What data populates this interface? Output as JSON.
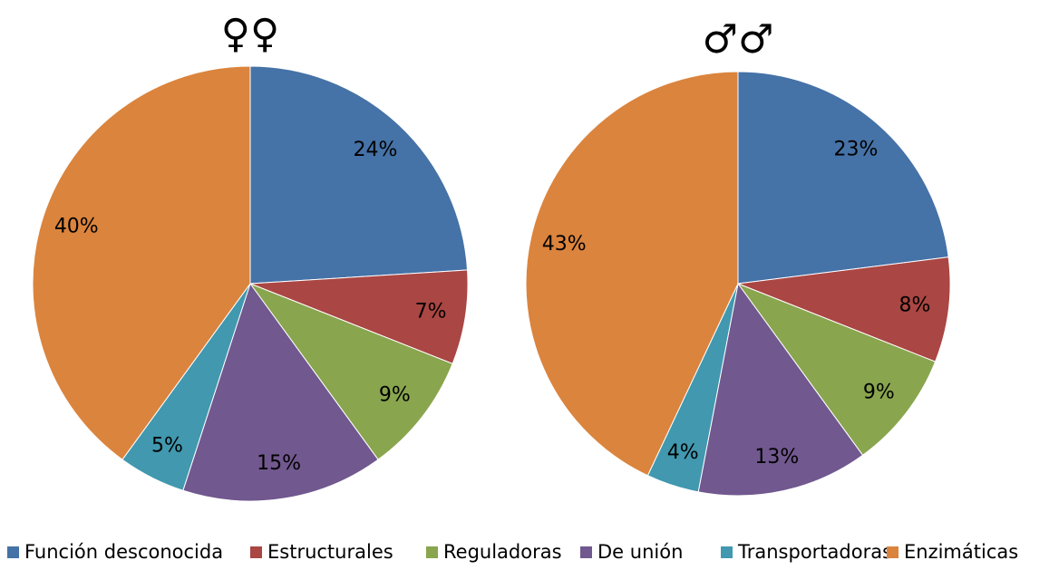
{
  "chart_data": [
    {
      "type": "pie",
      "title": "♀♀",
      "values": [
        24,
        7,
        9,
        15,
        5,
        40
      ],
      "value_labels": [
        "24%",
        "7%",
        "9%",
        "15%",
        "5%",
        "40%"
      ]
    },
    {
      "type": "pie",
      "title": "♂♂",
      "values": [
        23,
        8,
        9,
        13,
        4,
        43
      ],
      "value_labels": [
        "23%",
        "8%",
        "9%",
        "13%",
        "4%",
        "43%"
      ]
    }
  ],
  "legend": {
    "labels": [
      "Función desconocida",
      "Estructurales",
      "Reguladoras",
      "De unión",
      "Transportadoras",
      "Enzimáticas"
    ],
    "colors": [
      "#4572a7",
      "#aa4643",
      "#89a54e",
      "#71588f",
      "#4198af",
      "#db843d"
    ]
  }
}
